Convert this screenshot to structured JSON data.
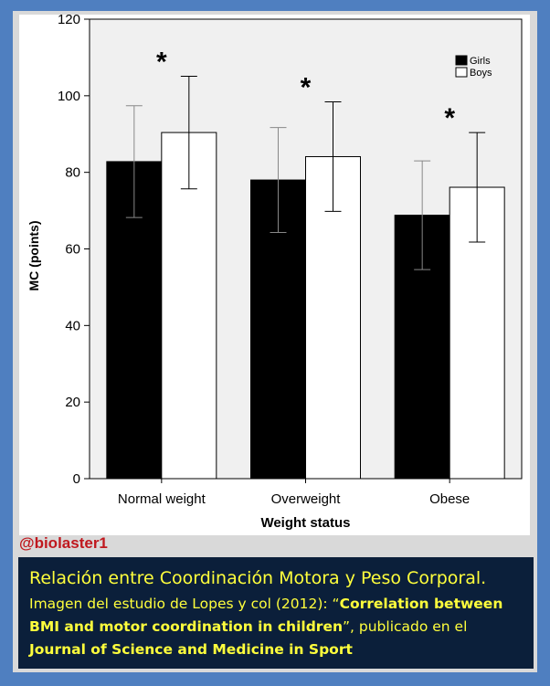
{
  "chart_data": {
    "type": "bar",
    "categories": [
      "Normal weight",
      "Overweight",
      "Obese"
    ],
    "series": [
      {
        "name": "Girls",
        "values": [
          82.8,
          78.0,
          68.8
        ],
        "errors": [
          14.6,
          13.7,
          14.2
        ],
        "color": "#000000"
      },
      {
        "name": "Boys",
        "values": [
          90.4,
          84.1,
          76.1
        ],
        "errors": [
          14.7,
          14.3,
          14.3
        ],
        "color": "#ffffff"
      }
    ],
    "significance": [
      "*",
      "*",
      "*"
    ],
    "xlabel": "Weight status",
    "ylabel": "MC (points)",
    "ylim": [
      0,
      120
    ],
    "yticks": [
      "0",
      "20",
      "40",
      "60",
      "80",
      "100",
      "120"
    ],
    "legend_position": "top-right",
    "grid": false
  },
  "handle": "@biolaster1",
  "caption": {
    "line1": "Relación entre Coordinación Motora y Peso Corporal.",
    "prefix": "Imagen del estudio de Lopes y col (2012): “",
    "study_title": "Correlation between BMI and motor coordination in children",
    "middle": "”, publicado en el ",
    "journal": "Journal of Science and Medicine in Sport"
  },
  "colors": {
    "background": "#4f7fc0",
    "caption_bg": "#0b1f3a",
    "caption_text": "#ffff3c",
    "handle": "#c0181e"
  }
}
